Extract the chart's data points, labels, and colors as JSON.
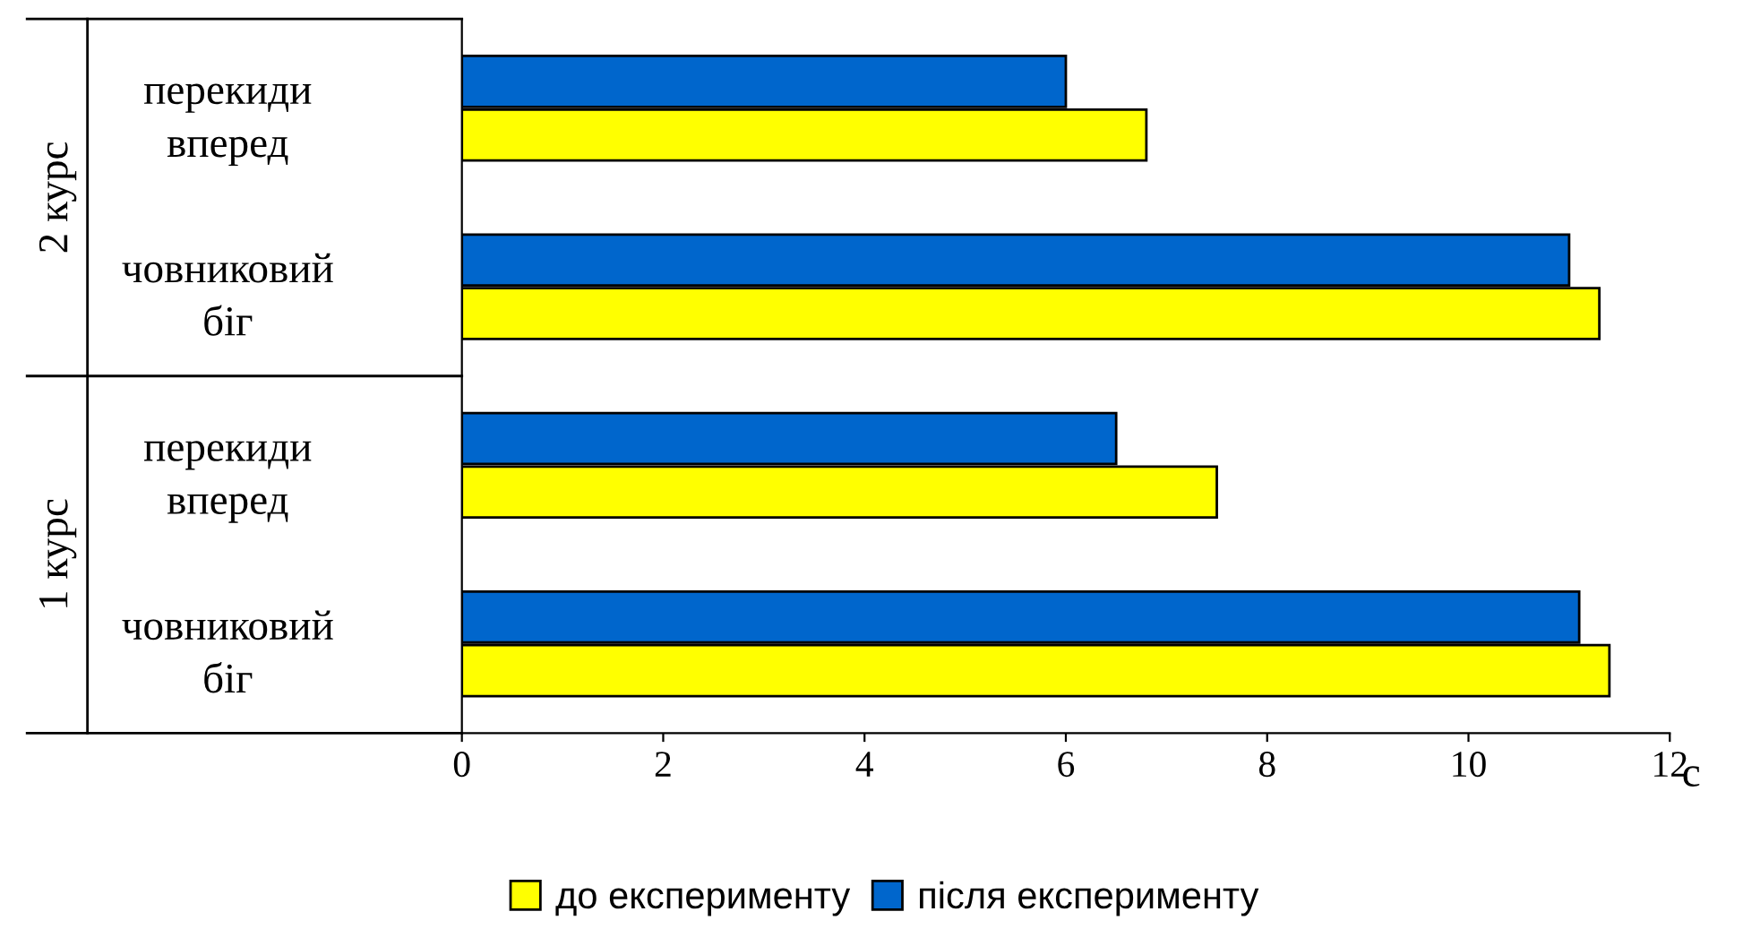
{
  "chart_data": {
    "type": "bar",
    "orientation": "horizontal",
    "xlabel": "с",
    "categories": [
      "перекиди\nвперед",
      "човниковий\nбіг",
      "перекиди\nвперед",
      "човниковий\nбіг"
    ],
    "series": [
      {
        "name": "до експерименту",
        "color": "#ffff00",
        "values": [
          6.8,
          11.3,
          7.5,
          11.4
        ]
      },
      {
        "name": "після експерименту",
        "color": "#0066cc",
        "values": [
          6.0,
          11.0,
          6.5,
          11.1
        ]
      }
    ],
    "annotations": [
      "2 курс",
      "1 курс"
    ],
    "xlim": [
      0,
      12
    ],
    "xticks": [
      0,
      2,
      4,
      6,
      8,
      10,
      12
    ],
    "grid": false,
    "legend": "bottom"
  }
}
